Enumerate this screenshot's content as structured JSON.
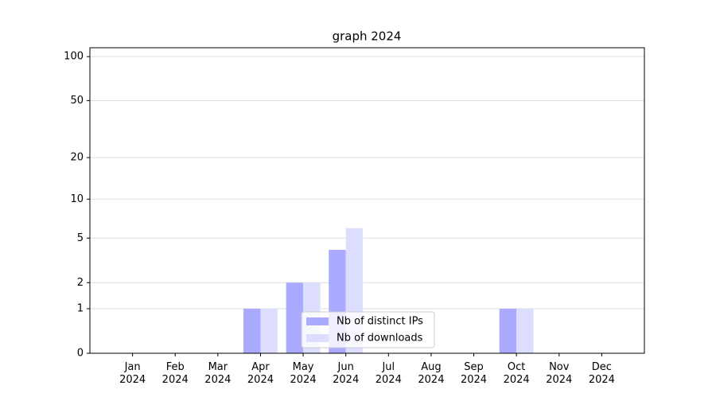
{
  "chart_data": {
    "type": "bar",
    "title": "graph 2024",
    "categories": [
      "Jan 2024",
      "Feb 2024",
      "Mar 2024",
      "Apr 2024",
      "May 2024",
      "Jun 2024",
      "Jul 2024",
      "Aug 2024",
      "Sep 2024",
      "Oct 2024",
      "Nov 2024",
      "Dec 2024"
    ],
    "series": [
      {
        "name": "Nb of distinct IPs",
        "color": "#aaaaff",
        "values": [
          0,
          0,
          0,
          1,
          2,
          4,
          0,
          0,
          0,
          1,
          0,
          0
        ]
      },
      {
        "name": "Nb of downloads",
        "color": "#ddddff",
        "values": [
          0,
          0,
          0,
          1,
          2,
          6,
          0,
          0,
          0,
          1,
          0,
          0
        ]
      }
    ],
    "yscale": "log1p",
    "ylim": [
      0,
      115
    ],
    "yticks": [
      0,
      1,
      2,
      5,
      10,
      20,
      50,
      100
    ],
    "grid": true,
    "legend": "lower center"
  }
}
